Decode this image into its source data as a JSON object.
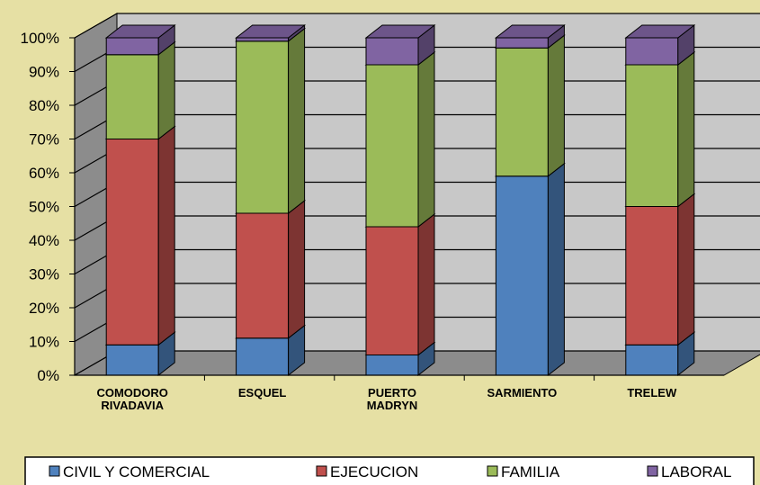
{
  "chart_data": {
    "type": "bar",
    "stacked": "percent",
    "three_d": true,
    "categories": [
      [
        "COMODORO",
        "RIVADAVIA"
      ],
      [
        "ESQUEL"
      ],
      [
        "PUERTO",
        "MADRYN"
      ],
      [
        "SARMIENTO"
      ],
      [
        "TRELEW"
      ]
    ],
    "series": [
      {
        "name": "CIVIL Y COMERCIAL",
        "values": [
          9,
          11,
          6,
          59,
          9
        ],
        "color": "#4f81bd"
      },
      {
        "name": "EJECUCION",
        "values": [
          61,
          37,
          38,
          0,
          41
        ],
        "color": "#c0504d"
      },
      {
        "name": "FAMILIA",
        "values": [
          25,
          51,
          48,
          38,
          42
        ],
        "color": "#9bbb59"
      },
      {
        "name": "LABORAL",
        "values": [
          5,
          1,
          8,
          3,
          8
        ],
        "color": "#8064a2"
      }
    ],
    "yticks": [
      "0%",
      "10%",
      "20%",
      "30%",
      "40%",
      "50%",
      "60%",
      "70%",
      "80%",
      "90%",
      "100%"
    ],
    "ylim": [
      0,
      100
    ],
    "grid": true,
    "legend": "bottom",
    "title": "",
    "xlabel": "",
    "ylabel": ""
  }
}
